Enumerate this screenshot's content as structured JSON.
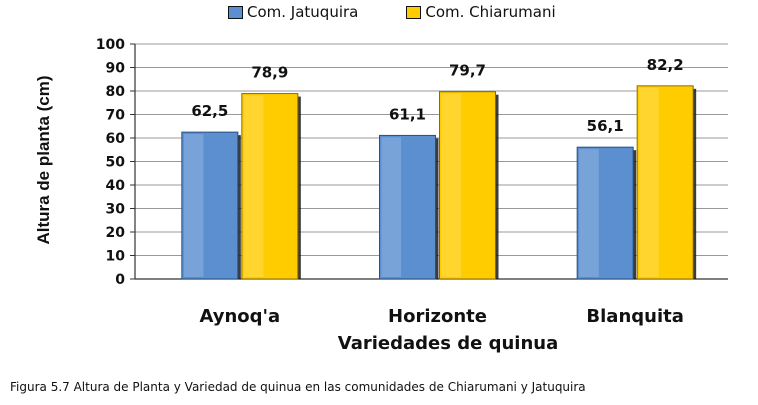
{
  "chart_data": {
    "type": "bar",
    "categories": [
      "Aynoq'a",
      "Horizonte",
      "Blanquita"
    ],
    "series": [
      {
        "name": "Com. Jatuquira",
        "values": [
          62.5,
          61.1,
          56.1
        ],
        "labels": [
          "62,5",
          "61,1",
          "56,1"
        ],
        "color": "#5b8fd0"
      },
      {
        "name": "Com. Chiarumani",
        "values": [
          78.9,
          79.7,
          82.2
        ],
        "labels": [
          "78,9",
          "79,7",
          "82,2"
        ],
        "color": "#ffcc00"
      }
    ],
    "ylim": [
      0,
      100
    ],
    "yticks": [
      0,
      10,
      20,
      30,
      40,
      50,
      60,
      70,
      80,
      90,
      100
    ],
    "ylabel": "Altura de planta (cm)",
    "xlabel": "Variedades de quinua",
    "legend_position": "top",
    "grid": true
  },
  "caption": "Figura 5.7   Altura de Planta y Variedad de quinua en las comunidades de Chiarumani y Jatuquira"
}
